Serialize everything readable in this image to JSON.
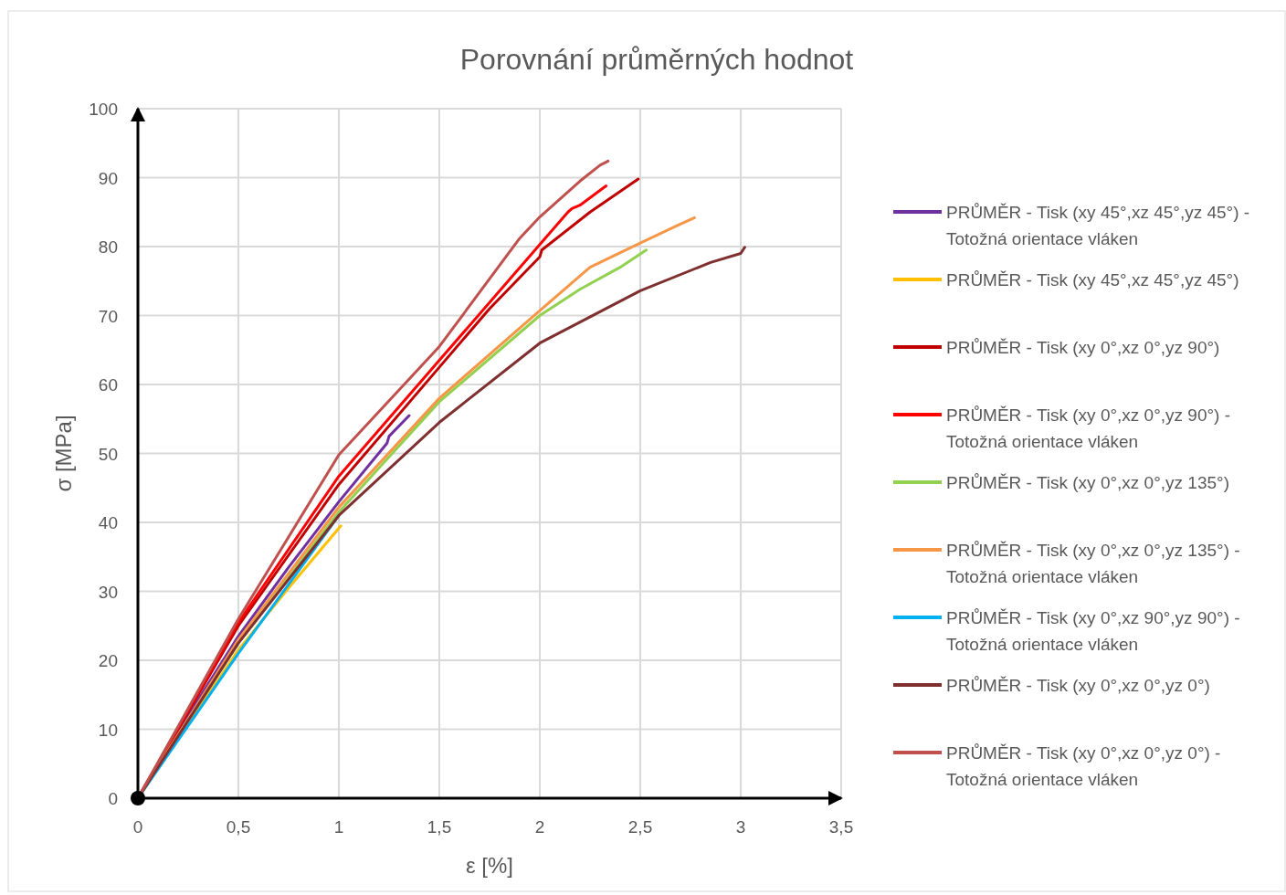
{
  "chart_data": {
    "type": "line",
    "title": "Porovnání průměrných hodnot",
    "xlabel": "ε [%]",
    "ylabel": "σ [MPa]",
    "xlim": [
      0,
      3.5
    ],
    "ylim": [
      0,
      100
    ],
    "xticks": [
      0,
      {
        "value": 0.5,
        "label": "0,5"
      },
      1,
      {
        "value": 1.5,
        "label": "1,5"
      },
      2,
      {
        "value": 2.5,
        "label": "2,5"
      },
      3,
      {
        "value": 3.5,
        "label": "3,5"
      }
    ],
    "yticks": [
      0,
      10,
      20,
      30,
      40,
      50,
      60,
      70,
      80,
      90,
      100
    ],
    "grid": true,
    "legend": "right",
    "marker": "none",
    "line_style": "solid",
    "series": [
      {
        "name": "PRŮMĚR - Tisk (xy 45°,xz 45°,yz 45°) - Totožná orientace vláken",
        "color": "#7030a0",
        "x": [
          0,
          0.25,
          0.5,
          0.75,
          1,
          1.24,
          1.25,
          1.35
        ],
        "values": [
          0,
          12,
          23.5,
          33.5,
          43,
          51.5,
          52.5,
          55.5
        ]
      },
      {
        "name": "PRŮMĚR - Tisk (xy 45°,xz 45°,yz 45°)",
        "color": "#ffc000",
        "x": [
          0,
          0.5,
          0.75,
          1.01
        ],
        "values": [
          0,
          21.5,
          30.5,
          39.5
        ]
      },
      {
        "name": "PRŮMĚR - Tisk (xy 0°,xz 0°,yz 90°)",
        "color": "#c00000",
        "x": [
          0,
          0.5,
          1,
          1.5,
          1.75,
          2,
          2.01,
          2.25,
          2.49
        ],
        "values": [
          0,
          25,
          45.5,
          62.5,
          71,
          78.5,
          79.5,
          85,
          89.8
        ]
      },
      {
        "name": "PRŮMĚR - Tisk (xy 0°,xz 0°,yz 90°) - Totožná orientace vláken",
        "color": "#ff0000",
        "x": [
          0,
          0.5,
          1,
          1.5,
          2,
          2.14,
          2.16,
          2.2,
          2.33
        ],
        "values": [
          0,
          25.5,
          46.7,
          63.5,
          80.3,
          85,
          85.5,
          86,
          88.8
        ]
      },
      {
        "name": "PRŮMĚR - Tisk (xy 0°,xz 0°,yz 135°)",
        "color": "#92d050",
        "x": [
          0,
          0.5,
          1,
          1.5,
          2,
          2.2,
          2.4,
          2.53
        ],
        "values": [
          0,
          22.5,
          41.5,
          57.5,
          70,
          73.8,
          77,
          79.5
        ]
      },
      {
        "name": "PRŮMĚR - Tisk (xy 0°,xz 0°,yz 135°) - Totožná orientace vláken",
        "color": "#f79646",
        "x": [
          0,
          0.5,
          1,
          1.5,
          2,
          2.25,
          2.5,
          2.68,
          2.77
        ],
        "values": [
          0,
          23,
          42.2,
          58,
          70.7,
          77,
          80.5,
          83,
          84.2
        ]
      },
      {
        "name": "PRŮMĚR - Tisk (xy 0°,xz 90°,yz 90°) - Totožná orientace vláken",
        "color": "#00b0f0",
        "x": [
          0,
          0.5,
          0.75,
          1
        ],
        "values": [
          0,
          21,
          31,
          41
        ]
      },
      {
        "name": "PRŮMĚR - Tisk (xy 0°,xz 0°,yz 0°)",
        "color": "#7f2f2f",
        "x": [
          0,
          0.5,
          1,
          1.5,
          2,
          2.5,
          2.85,
          3,
          3.02
        ],
        "values": [
          0,
          22.5,
          41,
          54.5,
          66,
          73.6,
          77.7,
          79,
          79.9
        ]
      },
      {
        "name": "PRŮMĚR - Tisk (xy 0°,xz 0°,yz 0°) - Totožná orientace vláken",
        "color": "#c0504d",
        "x": [
          0,
          0.5,
          1,
          1.5,
          1.9,
          2,
          2.2,
          2.3,
          2.34
        ],
        "values": [
          0,
          26,
          49.8,
          65.5,
          81.2,
          84.3,
          89.5,
          91.8,
          92.4
        ]
      }
    ]
  }
}
